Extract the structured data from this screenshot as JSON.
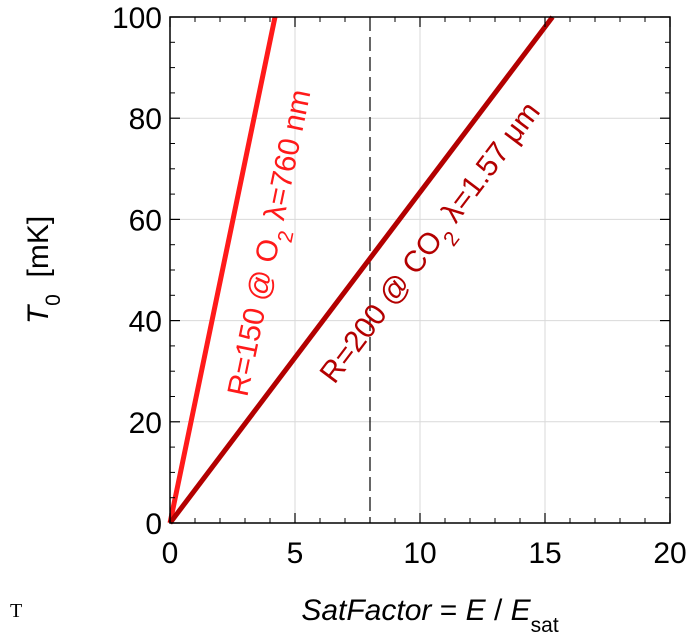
{
  "chart_data": {
    "type": "line",
    "xlim": [
      0,
      20
    ],
    "ylim": [
      0,
      100
    ],
    "xticks": [
      0,
      5,
      10,
      15,
      20
    ],
    "yticks": [
      0,
      20,
      40,
      60,
      80,
      100
    ],
    "xlabel": {
      "italic_part": "SatFactor",
      "mid": " = ",
      "e": "E",
      "slash": " / ",
      "esat": "E",
      "esat_sub": "sat"
    },
    "ylabel": {
      "t": "T",
      "t_sub": "0",
      "unit": "  [mK]"
    },
    "grid": true,
    "vline": {
      "x": 8,
      "style": "dashed"
    },
    "series": [
      {
        "name": "R=150 @ O2 λ=760 nm",
        "color": "#ff1a1a",
        "x": [
          0,
          4.2
        ],
        "y": [
          0,
          100
        ],
        "label": {
          "a": "R=150 @ O",
          "sub": "2",
          "b": " λ=760 nm"
        }
      },
      {
        "name": "R=200 @ CO2 λ=1.57 μm",
        "color": "#b30000",
        "x": [
          0,
          15.3
        ],
        "y": [
          0,
          100
        ],
        "label": {
          "a": "R=200 @ CO",
          "sub": "2",
          "b": " λ=1.57 μm"
        }
      }
    ]
  },
  "stray_text": "T"
}
